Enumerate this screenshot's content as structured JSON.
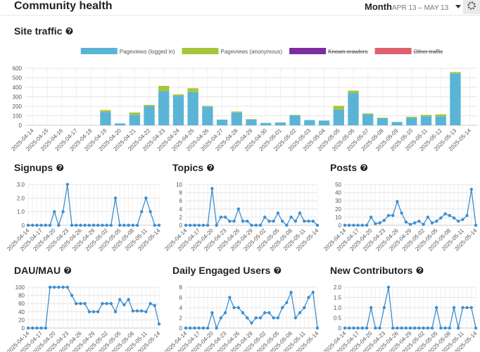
{
  "header": {
    "title": "Community health",
    "period": "Month",
    "range": "APR 13 – MAY 13"
  },
  "chart_data": [
    {
      "type": "bar",
      "stacked": true,
      "title": "Site traffic",
      "categories": [
        "2025-04-14",
        "2025-04-15",
        "2025-04-16",
        "2025-04-17",
        "2025-04-18",
        "2025-04-19",
        "2025-04-20",
        "2025-04-21",
        "2025-04-22",
        "2025-04-23",
        "2025-04-24",
        "2025-04-25",
        "2025-04-26",
        "2025-04-27",
        "2025-04-28",
        "2025-04-29",
        "2025-04-30",
        "2025-05-01",
        "2025-05-02",
        "2025-05-03",
        "2025-05-04",
        "2025-05-05",
        "2025-05-06",
        "2025-05-07",
        "2025-05-08",
        "2025-05-09",
        "2025-05-10",
        "2025-05-11",
        "2025-05-12",
        "2025-05-13",
        "2025-05-14"
      ],
      "series": [
        {
          "name": "Pageviews (logged in)",
          "color": "#5ab4d6",
          "values": [
            0,
            0,
            0,
            0,
            0,
            140,
            20,
            110,
            200,
            360,
            310,
            350,
            195,
            60,
            135,
            60,
            25,
            30,
            105,
            55,
            50,
            165,
            340,
            115,
            75,
            35,
            80,
            95,
            95,
            545,
            0
          ]
        },
        {
          "name": "Pageviews (anonymous)",
          "color": "#a5c63b",
          "values": [
            0,
            0,
            0,
            0,
            0,
            20,
            0,
            25,
            15,
            55,
            15,
            40,
            10,
            0,
            10,
            5,
            0,
            0,
            5,
            0,
            0,
            40,
            25,
            10,
            5,
            0,
            10,
            15,
            20,
            15,
            0
          ]
        }
      ],
      "hidden_series": [
        {
          "name": "Known crawlers",
          "color": "#7b2d9e"
        },
        {
          "name": "Other traffic",
          "color": "#e0606e"
        }
      ],
      "ylim": [
        0,
        600
      ],
      "yticks": [
        0,
        100,
        200,
        300,
        400,
        500,
        600
      ],
      "grid": true
    },
    {
      "type": "line",
      "title": "Signups",
      "color": "#3c8ed0",
      "categories": [
        "2025-04-14",
        null,
        null,
        "2025-04-17",
        null,
        null,
        "2025-04-20",
        null,
        null,
        "2025-04-23",
        null,
        null,
        "2025-04-26",
        null,
        null,
        "2025-04-29",
        null,
        null,
        "2025-05-02",
        null,
        null,
        "2025-05-05",
        null,
        null,
        "2025-05-08",
        null,
        null,
        "2025-05-11",
        null,
        null,
        "2025-05-14"
      ],
      "values": [
        0,
        0,
        0,
        0,
        0,
        0,
        1,
        0,
        1,
        3,
        0,
        0,
        0,
        0,
        0,
        0,
        0,
        0,
        0,
        0,
        2,
        0,
        0,
        0,
        0,
        0,
        1,
        2,
        1,
        0,
        0
      ],
      "ylim": [
        0,
        3
      ],
      "yticks": [
        0,
        {
          "value": 1,
          "label": "1.0"
        },
        {
          "value": 2,
          "label": "2.0"
        },
        {
          "value": 3,
          "label": "3.0"
        }
      ],
      "grid": true
    },
    {
      "type": "line",
      "title": "Topics",
      "color": "#3c8ed0",
      "categories": [
        "2025-04-14",
        null,
        null,
        "2025-04-17",
        null,
        null,
        "2025-04-20",
        null,
        null,
        "2025-04-23",
        null,
        null,
        "2025-04-26",
        null,
        null,
        "2025-04-29",
        null,
        null,
        "2025-05-02",
        null,
        null,
        "2025-05-05",
        null,
        null,
        "2025-05-08",
        null,
        null,
        "2025-05-11",
        null,
        null,
        "2025-05-14"
      ],
      "values": [
        0,
        0,
        0,
        0,
        0,
        0,
        9,
        0,
        2,
        2,
        1,
        1,
        4,
        1,
        1,
        0,
        0,
        0,
        2,
        1,
        1,
        3,
        1,
        0,
        2,
        1,
        3,
        1,
        1,
        1,
        0
      ],
      "ylim": [
        0,
        10
      ],
      "yticks": [
        0,
        2,
        4,
        6,
        8,
        10
      ],
      "grid": true
    },
    {
      "type": "line",
      "title": "Posts",
      "color": "#3c8ed0",
      "categories": [
        "2025-04-14",
        null,
        null,
        "2025-04-17",
        null,
        null,
        "2025-04-20",
        null,
        null,
        "2025-04-23",
        null,
        null,
        "2025-04-26",
        null,
        null,
        "2025-04-29",
        null,
        null,
        "2025-05-02",
        null,
        null,
        "2025-05-05",
        null,
        null,
        "2025-05-08",
        null,
        null,
        "2025-05-11",
        null,
        null,
        "2025-05-14"
      ],
      "values": [
        0,
        0,
        0,
        0,
        0,
        0,
        10,
        2,
        3,
        6,
        12,
        12,
        29,
        15,
        4,
        1,
        3,
        5,
        1,
        10,
        3,
        5,
        9,
        14,
        12,
        9,
        5,
        7,
        12,
        44,
        0
      ],
      "ylim": [
        0,
        50
      ],
      "yticks": [
        0,
        10,
        20,
        30,
        40,
        50
      ],
      "grid": true
    },
    {
      "type": "line",
      "title": "DAU/MAU",
      "color": "#3c8ed0",
      "categories": [
        "2025-04-14",
        null,
        null,
        "2025-04-17",
        null,
        null,
        "2025-04-20",
        null,
        null,
        "2025-04-23",
        null,
        null,
        "2025-04-26",
        null,
        null,
        "2025-04-29",
        null,
        null,
        "2025-05-02",
        null,
        null,
        "2025-05-05",
        null,
        null,
        "2025-05-08",
        null,
        null,
        "2025-05-11",
        null,
        null,
        "2025-05-14"
      ],
      "values": [
        0,
        0,
        0,
        0,
        0,
        100,
        100,
        100,
        100,
        100,
        80,
        60,
        60,
        60,
        40,
        40,
        40,
        60,
        60,
        60,
        40,
        70,
        57,
        70,
        42,
        42,
        42,
        40,
        60,
        55,
        10
      ],
      "ylim": [
        0,
        100
      ],
      "yticks": [
        0,
        20,
        40,
        60,
        80,
        100
      ],
      "grid": true
    },
    {
      "type": "line",
      "title": "Daily Engaged Users",
      "color": "#3c8ed0",
      "categories": [
        "2025-04-14",
        null,
        null,
        "2025-04-17",
        null,
        null,
        "2025-04-20",
        null,
        null,
        "2025-04-23",
        null,
        null,
        "2025-04-26",
        null,
        null,
        "2025-04-29",
        null,
        null,
        "2025-05-02",
        null,
        null,
        "2025-05-05",
        null,
        null,
        "2025-05-08",
        null,
        null,
        "2025-05-11",
        null,
        null,
        "2025-05-14"
      ],
      "values": [
        0,
        0,
        0,
        0,
        0,
        0,
        3,
        0,
        2,
        3,
        6,
        4,
        4,
        3,
        2,
        1,
        2,
        2,
        3,
        3,
        2,
        2,
        4,
        5,
        7,
        2,
        3,
        4,
        6,
        7,
        0
      ],
      "ylim": [
        0,
        8
      ],
      "yticks": [
        0,
        2,
        4,
        6,
        8
      ],
      "grid": true
    },
    {
      "type": "line",
      "title": "New Contributors",
      "color": "#3c8ed0",
      "categories": [
        "2025-04-14",
        null,
        null,
        "2025-04-17",
        null,
        null,
        "2025-04-20",
        null,
        null,
        "2025-04-23",
        null,
        null,
        "2025-04-26",
        null,
        null,
        "2025-04-29",
        null,
        null,
        "2025-05-02",
        null,
        null,
        "2025-05-05",
        null,
        null,
        "2025-05-08",
        null,
        null,
        "2025-05-11",
        null,
        null,
        "2025-05-14"
      ],
      "values": [
        0,
        0,
        0,
        0,
        0,
        0,
        1,
        0,
        0,
        1,
        2,
        0,
        0,
        0,
        0,
        0,
        0,
        0,
        0,
        0,
        0,
        1,
        0,
        0,
        0,
        1,
        0,
        1,
        1,
        1,
        0
      ],
      "ylim": [
        0,
        2
      ],
      "yticks": [
        0,
        0.5,
        {
          "value": 1,
          "label": "1.0"
        },
        1.5,
        {
          "value": 2,
          "label": "2.0"
        }
      ],
      "grid": true
    }
  ]
}
